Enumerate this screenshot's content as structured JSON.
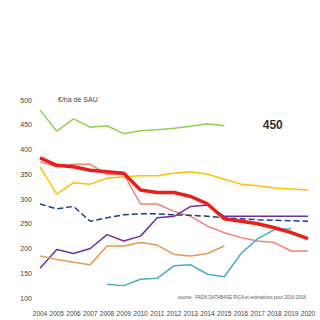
{
  "chart_data": {
    "type": "line",
    "y_label": "€/ha de SAU",
    "source": "source : FADN DATABASE RICA et estimations pour 2016-2018",
    "annotations": [
      {
        "text": "450",
        "x": "2017",
        "y": 450
      }
    ],
    "categories": [
      "2004",
      "2005",
      "2006",
      "2007",
      "2008",
      "2009",
      "2010",
      "2011",
      "2012",
      "2013",
      "2014",
      "2015",
      "2016",
      "2017",
      "2018",
      "2019",
      "2020"
    ],
    "ylim": [
      100,
      500
    ],
    "yticks": [
      100,
      150,
      200,
      250,
      300,
      350,
      400,
      450,
      500
    ],
    "grid": false,
    "series": [
      {
        "color": "#92d050",
        "line_style": "solid",
        "values": [
          480,
          437,
          462,
          445,
          448,
          432,
          438,
          440,
          443,
          447,
          452,
          448,
          null,
          null,
          null,
          null,
          null
        ]
      },
      {
        "color": "#ffc000",
        "line_style": "solid",
        "values": [
          365,
          310,
          333,
          330,
          342,
          345,
          347,
          347,
          352,
          355,
          350,
          340,
          330,
          327,
          322,
          320,
          318
        ]
      },
      {
        "color": "#f4817a",
        "line_style": "solid",
        "values": [
          375,
          365,
          370,
          370,
          350,
          350,
          290,
          290,
          275,
          265,
          245,
          232,
          222,
          215,
          212,
          195,
          195
        ]
      },
      {
        "color": "#1f3c88",
        "line_style": "dotted",
        "values": [
          290,
          280,
          285,
          255,
          262,
          268,
          270,
          270,
          268,
          267,
          265,
          262,
          260,
          258,
          257,
          256,
          255
        ]
      },
      {
        "color": "#7030a0",
        "line_style": "solid",
        "values": [
          160,
          198,
          190,
          200,
          228,
          215,
          225,
          262,
          265,
          285,
          288,
          265,
          265,
          265,
          265,
          265,
          265
        ]
      },
      {
        "color": "#e59a4f",
        "line_style": "solid",
        "values": [
          185,
          178,
          172,
          167,
          205,
          205,
          212,
          207,
          188,
          185,
          190,
          205,
          null,
          null,
          null,
          null,
          null
        ]
      },
      {
        "color": "#4bacc6",
        "line_style": "solid",
        "values": [
          null,
          null,
          null,
          null,
          128,
          125,
          138,
          140,
          165,
          167,
          148,
          143,
          190,
          220,
          238,
          240,
          null
        ]
      },
      {
        "color": "#e8201a",
        "line_style": "thick",
        "values": [
          383,
          368,
          365,
          358,
          355,
          352,
          318,
          313,
          313,
          305,
          290,
          260,
          255,
          250,
          242,
          232,
          220
        ]
      }
    ]
  }
}
